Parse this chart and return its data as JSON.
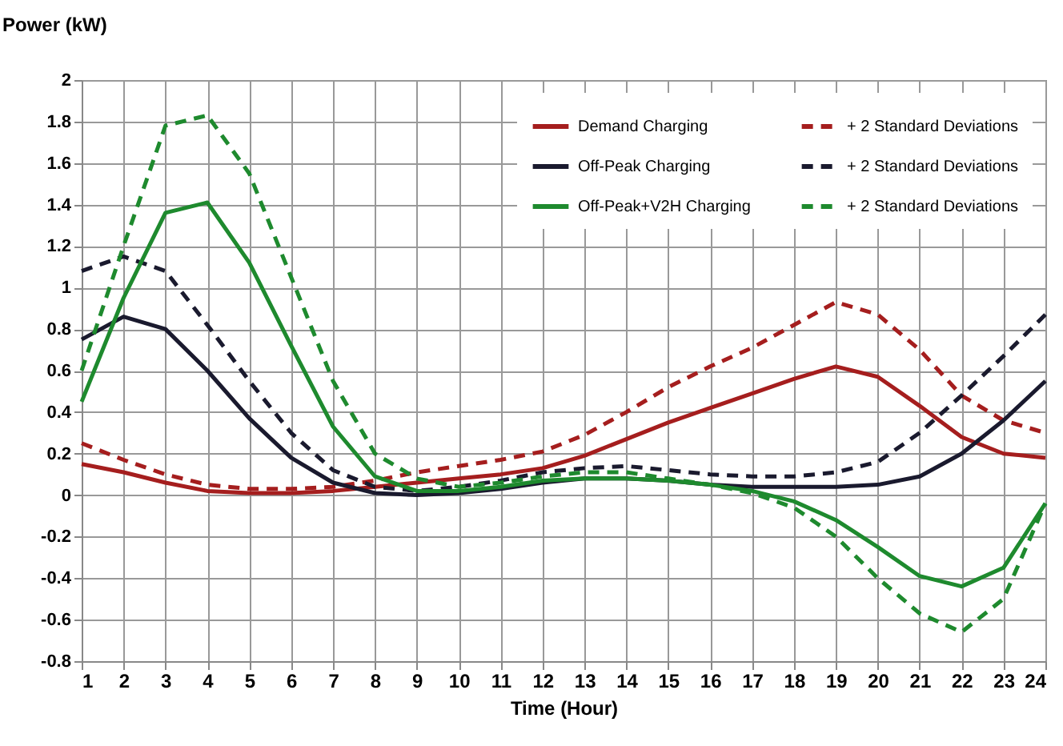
{
  "chart_data": {
    "type": "line",
    "xlabel": "Time (Hour)",
    "ylabel": "Power (kW)",
    "x": [
      1,
      2,
      3,
      4,
      5,
      6,
      7,
      8,
      9,
      10,
      11,
      12,
      13,
      14,
      15,
      16,
      17,
      18,
      19,
      20,
      21,
      22,
      23,
      24
    ],
    "series": [
      {
        "name": "Demand Charging",
        "color": "#a51e1e",
        "line_style": "solid",
        "values": [
          0.15,
          0.11,
          0.06,
          0.02,
          0.01,
          0.01,
          0.02,
          0.04,
          0.06,
          0.08,
          0.1,
          0.13,
          0.19,
          0.27,
          0.35,
          0.42,
          0.49,
          0.56,
          0.62,
          0.57,
          0.43,
          0.28,
          0.2,
          0.18
        ]
      },
      {
        "name": "+ 2 Standard Deviations",
        "color": "#a51e1e",
        "line_style": "dashed",
        "values": [
          0.25,
          0.17,
          0.1,
          0.05,
          0.03,
          0.03,
          0.04,
          0.07,
          0.11,
          0.14,
          0.17,
          0.21,
          0.29,
          0.4,
          0.52,
          0.62,
          0.71,
          0.82,
          0.93,
          0.87,
          0.7,
          0.48,
          0.36,
          0.3
        ]
      },
      {
        "name": "Off-Peak Charging",
        "color": "#1a1a2e",
        "line_style": "solid",
        "values": [
          0.75,
          0.86,
          0.8,
          0.6,
          0.37,
          0.18,
          0.06,
          0.01,
          0,
          0.01,
          0.03,
          0.06,
          0.08,
          0.08,
          0.07,
          0.05,
          0.04,
          0.04,
          0.04,
          0.05,
          0.09,
          0.2,
          0.36,
          0.55
        ]
      },
      {
        "name": "+ 2 Standard Deviations",
        "color": "#1a1a2e",
        "line_style": "dashed",
        "values": [
          1.08,
          1.15,
          1.08,
          0.82,
          0.55,
          0.3,
          0.12,
          0.04,
          0.02,
          0.04,
          0.07,
          0.11,
          0.13,
          0.14,
          0.12,
          0.1,
          0.09,
          0.09,
          0.11,
          0.16,
          0.3,
          0.48,
          0.67,
          0.87
        ]
      },
      {
        "name": "Off-Peak+V2H Charging",
        "color": "#1e8a2e",
        "line_style": "solid",
        "values": [
          0.45,
          0.95,
          1.36,
          1.41,
          1.12,
          0.72,
          0.33,
          0.09,
          0.02,
          0.02,
          0.04,
          0.07,
          0.08,
          0.08,
          0.07,
          0.05,
          0.02,
          -0.03,
          -0.12,
          -0.25,
          -0.39,
          -0.44,
          -0.35,
          -0.04
        ]
      },
      {
        "name": "+ 2 Standard Deviations",
        "color": "#1e8a2e",
        "line_style": "dashed",
        "values": [
          0.6,
          1.2,
          1.78,
          1.83,
          1.55,
          1.05,
          0.55,
          0.2,
          0.08,
          0.04,
          0.06,
          0.09,
          0.11,
          0.11,
          0.08,
          0.05,
          0.01,
          -0.06,
          -0.2,
          -0.4,
          -0.57,
          -0.66,
          -0.5,
          -0.04
        ]
      }
    ],
    "xlim": [
      1,
      24
    ],
    "xticks": [
      1,
      2,
      3,
      4,
      5,
      6,
      7,
      8,
      9,
      10,
      11,
      12,
      13,
      14,
      15,
      16,
      17,
      18,
      19,
      20,
      21,
      22,
      23,
      24
    ],
    "ylim": [
      -0.8,
      2
    ],
    "yticks": [
      -0.8,
      -0.6,
      -0.4,
      -0.2,
      0,
      0.2,
      0.4,
      0.6,
      0.8,
      1,
      1.2,
      1.4,
      1.6,
      1.8,
      2
    ],
    "grid": true,
    "legend": "top right",
    "marker": "none"
  }
}
